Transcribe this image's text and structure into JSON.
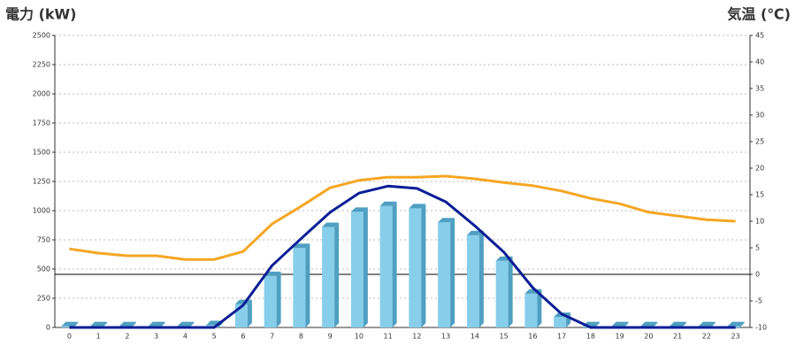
{
  "chart_data": {
    "type": "combo",
    "y_label": "電力 (kW)",
    "y_label_color": "#1a73b8",
    "y2_label": "気温 (℃)",
    "y2_label_color": "#f07d1a",
    "categories": [
      "0",
      "1",
      "2",
      "3",
      "4",
      "5",
      "6",
      "7",
      "8",
      "9",
      "10",
      "11",
      "12",
      "13",
      "14",
      "15",
      "16",
      "17",
      "18",
      "19",
      "20",
      "21",
      "22",
      "23"
    ],
    "series": [
      {
        "type": "bar",
        "color": "#87ceeb",
        "side_color": "#4f9fc2",
        "values": [
          10,
          10,
          10,
          10,
          10,
          20,
          200,
          440,
          680,
          860,
          990,
          1040,
          1020,
          900,
          790,
          570,
          290,
          90,
          10,
          10,
          10,
          10,
          10,
          10
        ]
      },
      {
        "type": "line",
        "color": "#0a1e96",
        "values": [
          0,
          0,
          0,
          0,
          0,
          0,
          190,
          530,
          760,
          985,
          1150,
          1210,
          1190,
          1075,
          870,
          645,
          340,
          115,
          0,
          0,
          0,
          0,
          0,
          0
        ]
      },
      {
        "type": "line",
        "axis": "y2",
        "color": "#f5a623",
        "values": [
          4.8,
          4,
          3.5,
          3.5,
          2.8,
          2.8,
          4.3,
          9.5,
          12.8,
          16.3,
          17.7,
          18.3,
          18.3,
          18.5,
          18,
          17.3,
          16.7,
          15.7,
          14.3,
          13.3,
          11.7,
          11,
          10.3,
          10
        ]
      }
    ],
    "ylim": [
      0,
      2500
    ],
    "yticks": [
      0,
      250,
      500,
      750,
      1000,
      1250,
      1500,
      1750,
      2000,
      2250,
      2500
    ],
    "y2lim": [
      -10,
      45
    ],
    "y2ticks": [
      -10,
      -5,
      0,
      5,
      10,
      15,
      20,
      25,
      30,
      35,
      40,
      45
    ],
    "y2_reference_line": 0,
    "grid": true
  }
}
